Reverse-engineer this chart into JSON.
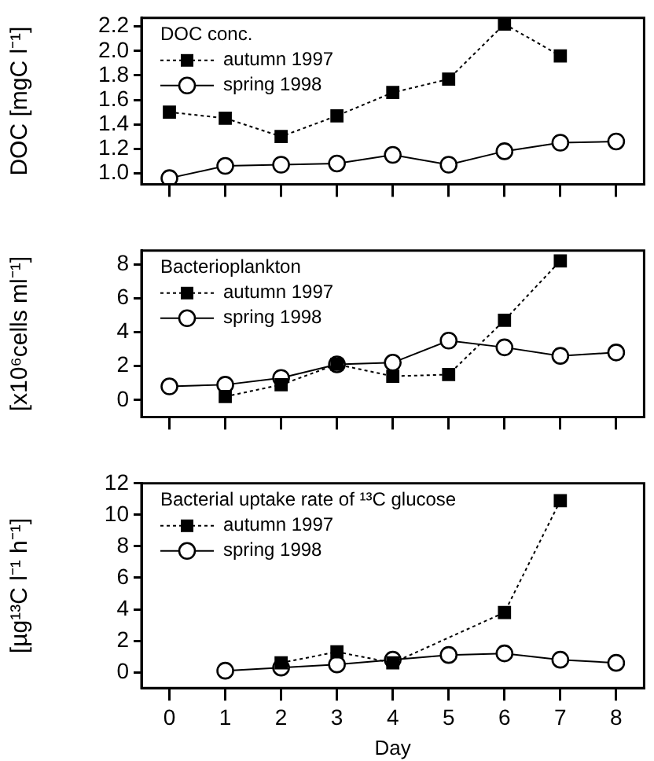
{
  "chart_data": [
    {
      "type": "line",
      "legend_title": "DOC conc.",
      "ylabel": "DOC [mgC l⁻¹]",
      "xlim": [
        -0.5,
        8.5
      ],
      "xticks": [
        0,
        1,
        2,
        3,
        4,
        5,
        6,
        7,
        8
      ],
      "ylim": [
        0.91,
        2.27
      ],
      "yticks": [
        {
          "value": 1,
          "label": "1.0"
        },
        1.2,
        1.4,
        1.6,
        1.8,
        {
          "value": 2,
          "label": "2.0"
        },
        2.2
      ],
      "tick_labels": "y",
      "legend": "top left",
      "grid": false,
      "series": [
        {
          "name": "autumn 1997",
          "color": "#000000",
          "marker": "square",
          "line_style": "dotted",
          "x": [
            0,
            1,
            2,
            3,
            4,
            5,
            6,
            7
          ],
          "values": [
            1.5,
            1.45,
            1.3,
            1.47,
            1.66,
            1.77,
            2.22,
            1.96
          ]
        },
        {
          "name": "spring 1998",
          "color": "#000000",
          "marker": "circle",
          "line_style": "solid",
          "x": [
            0,
            1,
            2,
            3,
            4,
            5,
            6,
            7,
            8
          ],
          "values": [
            0.96,
            1.06,
            1.07,
            1.08,
            1.15,
            1.07,
            1.18,
            1.25,
            1.26
          ]
        }
      ]
    },
    {
      "type": "line",
      "legend_title": "Bacterioplankton",
      "ylabel": "[x10⁶cells ml⁻¹]",
      "xlim": [
        -0.5,
        8.5
      ],
      "xticks": [
        0,
        1,
        2,
        3,
        4,
        5,
        6,
        7,
        8
      ],
      "ylim": [
        -1,
        8.8
      ],
      "yticks": [
        0,
        2,
        4,
        6,
        8
      ],
      "tick_labels": "y",
      "legend": "top left",
      "grid": false,
      "series": [
        {
          "name": "autumn 1997",
          "color": "#000000",
          "marker": "square",
          "line_style": "dotted",
          "x": [
            1,
            2,
            3,
            4,
            5,
            6,
            7
          ],
          "values": [
            0.2,
            0.9,
            2.1,
            1.4,
            1.5,
            4.7,
            8.2
          ]
        },
        {
          "name": "spring 1998",
          "color": "#000000",
          "marker": "circle",
          "line_style": "solid",
          "x": [
            0,
            1,
            2,
            3,
            4,
            5,
            6,
            7,
            8
          ],
          "values": [
            0.8,
            0.9,
            1.3,
            2.1,
            2.2,
            3.5,
            3.1,
            2.6,
            2.8
          ]
        }
      ]
    },
    {
      "type": "line",
      "legend_title": "Bacterial uptake rate of ¹³C glucose",
      "ylabel": "[µg¹³C l⁻¹ h⁻¹]",
      "xlabel": "Day",
      "xlim": [
        -0.5,
        8.5
      ],
      "xticks": [
        0,
        1,
        2,
        3,
        4,
        5,
        6,
        7,
        8
      ],
      "ylim": [
        -1,
        12
      ],
      "yticks": [
        0,
        2,
        4,
        6,
        8,
        10,
        12
      ],
      "legend": "top left",
      "grid": false,
      "series": [
        {
          "name": "autumn 1997",
          "color": "#000000",
          "marker": "square",
          "line_style": "dotted",
          "x": [
            2,
            3,
            4,
            6,
            7
          ],
          "values": [
            0.6,
            1.3,
            0.6,
            3.8,
            10.9
          ]
        },
        {
          "name": "spring 1998",
          "color": "#000000",
          "marker": "circle",
          "line_style": "solid",
          "x": [
            1,
            2,
            3,
            4,
            5,
            6,
            7,
            8
          ],
          "values": [
            0.1,
            0.3,
            0.5,
            0.8,
            1.1,
            1.2,
            0.8,
            0.6
          ]
        }
      ]
    }
  ]
}
